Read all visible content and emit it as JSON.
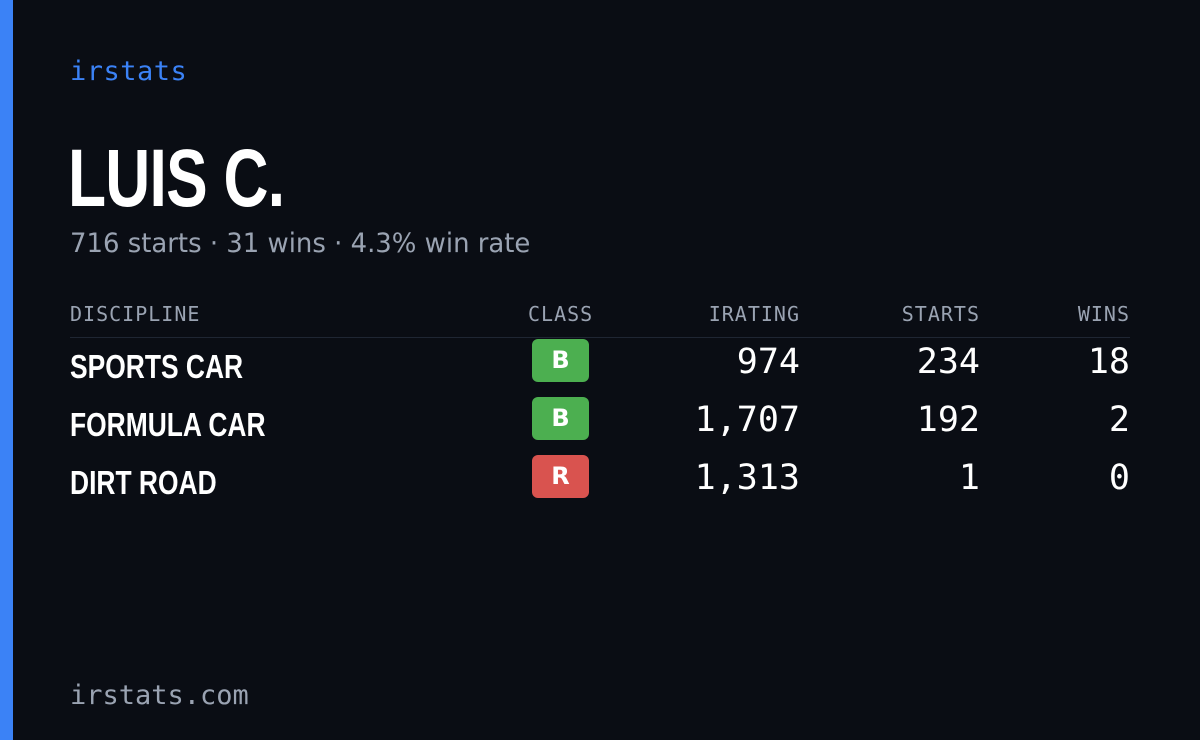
{
  "brand": {
    "label": "irstats"
  },
  "driver": {
    "name": "LUIS C.",
    "summary": "716 starts · 31 wins · 4.3% win rate"
  },
  "table": {
    "headers": {
      "discipline": "DISCIPLINE",
      "class": "CLASS",
      "irating": "IRATING",
      "starts": "STARTS",
      "wins": "WINS"
    },
    "rows": [
      {
        "discipline": "SPORTS CAR",
        "class": "B",
        "class_color": "#4caf50",
        "irating": "974",
        "starts": "234",
        "wins": "18"
      },
      {
        "discipline": "FORMULA CAR",
        "class": "B",
        "class_color": "#4caf50",
        "irating": "1,707",
        "starts": "192",
        "wins": "2"
      },
      {
        "discipline": "DIRT ROAD",
        "class": "R",
        "class_color": "#d9534f",
        "irating": "1,313",
        "starts": "1",
        "wins": "0"
      }
    ]
  },
  "footer": {
    "domain": "irstats.com"
  },
  "colors": {
    "accent": "#3b82f6",
    "background": "#0a0d14",
    "muted": "#9aa3b2"
  }
}
